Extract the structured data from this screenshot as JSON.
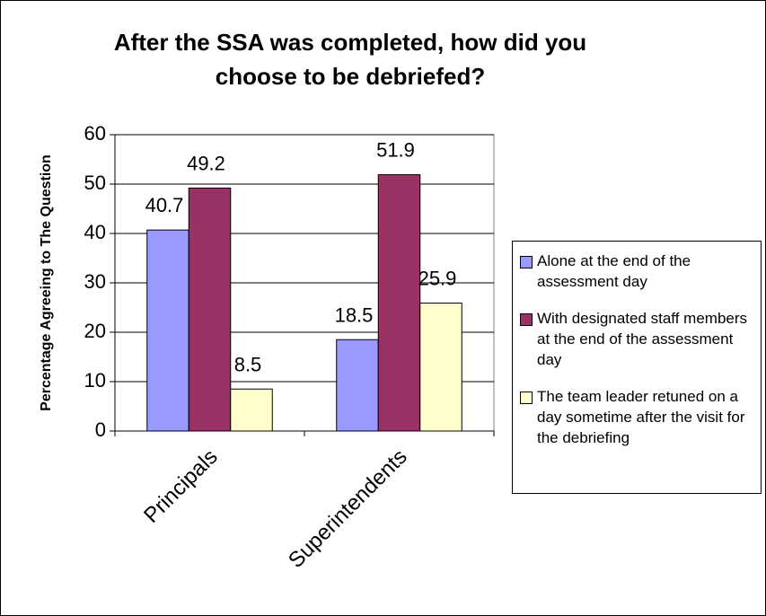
{
  "chart_data": {
    "type": "bar",
    "title": "After the SSA was completed, how did you choose to be debriefed?",
    "y_label": "Percentage Agreeing to The Question",
    "categories": [
      "Principals",
      "Superintendents"
    ],
    "series": [
      {
        "name": "Alone at the end of the assessment day",
        "color": "#9999ff",
        "values": [
          40.7,
          18.5
        ]
      },
      {
        "name": "With designated staff members at the end of the assessment day",
        "color": "#993366",
        "values": [
          49.2,
          51.9
        ]
      },
      {
        "name": "The team leader retuned on a day sometime after the visit for the debriefing",
        "color": "#ffffcc",
        "values": [
          8.5,
          25.9
        ]
      }
    ],
    "ylim": [
      0,
      60
    ],
    "yticks": [
      0,
      10,
      20,
      30,
      40,
      50,
      60
    ],
    "grid": true,
    "legend": "right"
  }
}
